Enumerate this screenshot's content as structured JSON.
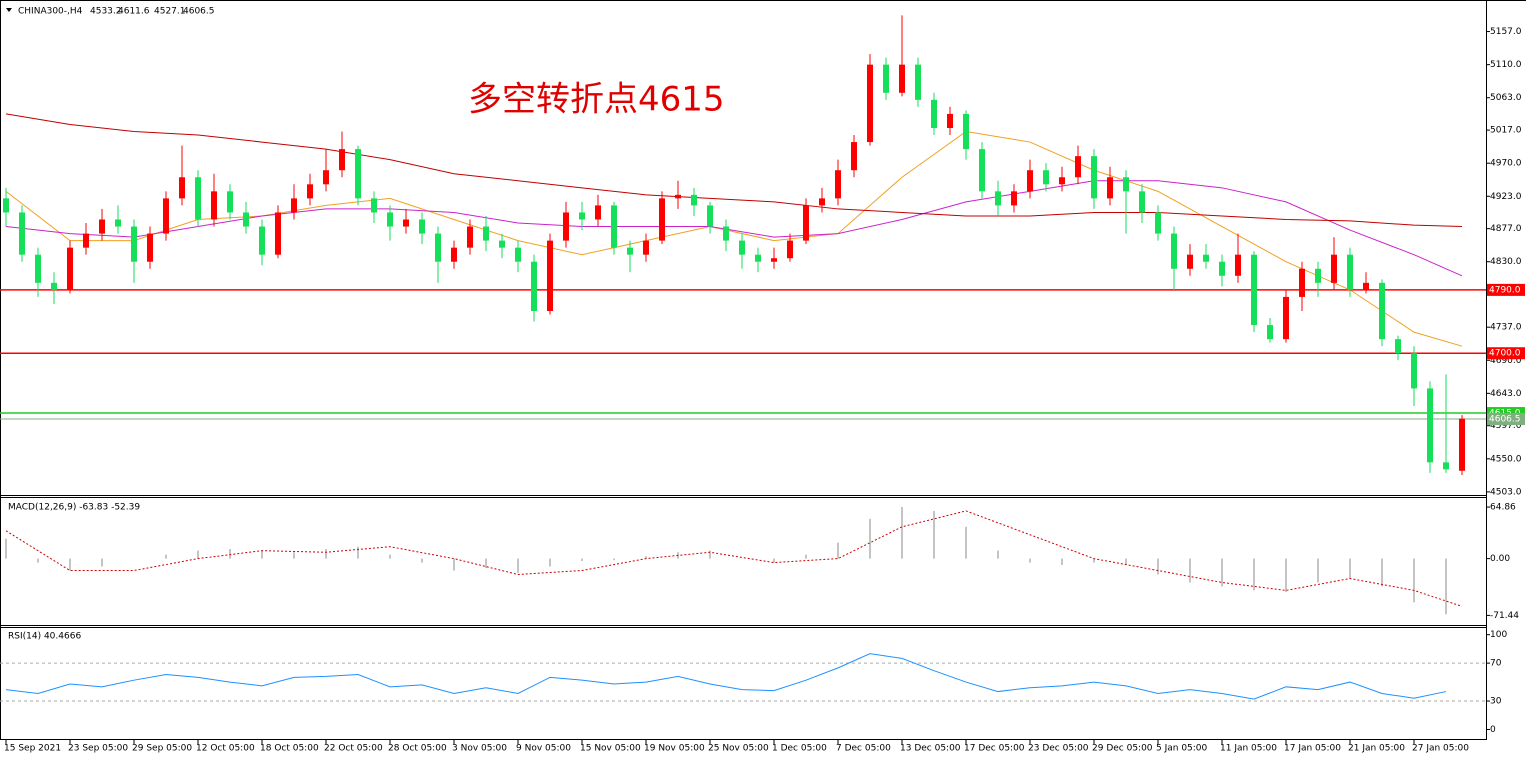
{
  "chart_data": {
    "type": "candlestick",
    "symbol": "CHINA300-,H4",
    "ohlc": [
      4533.2,
      4611.6,
      4527.1,
      4606.5
    ],
    "annotation": "多空转折点4615",
    "up_color": "#ff0000",
    "down_color": "#16df5a",
    "candles": [
      [
        4920,
        4935,
        4880,
        4900
      ],
      [
        4900,
        4910,
        4830,
        4840
      ],
      [
        4840,
        4850,
        4780,
        4800
      ],
      [
        4800,
        4815,
        4770,
        4790
      ],
      [
        4790,
        4860,
        4785,
        4850
      ],
      [
        4850,
        4885,
        4840,
        4870
      ],
      [
        4870,
        4905,
        4860,
        4890
      ],
      [
        4890,
        4910,
        4870,
        4880
      ],
      [
        4880,
        4890,
        4800,
        4830
      ],
      [
        4830,
        4880,
        4820,
        4870
      ],
      [
        4870,
        4930,
        4860,
        4920
      ],
      [
        4920,
        4995,
        4910,
        4950
      ],
      [
        4950,
        4960,
        4880,
        4890
      ],
      [
        4890,
        4955,
        4880,
        4930
      ],
      [
        4930,
        4940,
        4890,
        4900
      ],
      [
        4900,
        4915,
        4870,
        4880
      ],
      [
        4880,
        4890,
        4825,
        4840
      ],
      [
        4840,
        4910,
        4835,
        4900
      ],
      [
        4900,
        4940,
        4890,
        4920
      ],
      [
        4920,
        4955,
        4910,
        4940
      ],
      [
        4940,
        4990,
        4930,
        4960
      ],
      [
        4960,
        5015,
        4950,
        4990
      ],
      [
        4990,
        4995,
        4910,
        4920
      ],
      [
        4920,
        4930,
        4885,
        4900
      ],
      [
        4900,
        4910,
        4860,
        4880
      ],
      [
        4880,
        4905,
        4870,
        4890
      ],
      [
        4890,
        4900,
        4855,
        4870
      ],
      [
        4870,
        4880,
        4800,
        4830
      ],
      [
        4830,
        4860,
        4820,
        4850
      ],
      [
        4850,
        4890,
        4840,
        4880
      ],
      [
        4880,
        4895,
        4845,
        4860
      ],
      [
        4860,
        4870,
        4835,
        4850
      ],
      [
        4850,
        4860,
        4815,
        4830
      ],
      [
        4830,
        4840,
        4745,
        4760
      ],
      [
        4760,
        4870,
        4755,
        4860
      ],
      [
        4860,
        4915,
        4850,
        4900
      ],
      [
        4900,
        4915,
        4875,
        4890
      ],
      [
        4890,
        4925,
        4880,
        4910
      ],
      [
        4910,
        4915,
        4840,
        4850
      ],
      [
        4850,
        4860,
        4815,
        4840
      ],
      [
        4840,
        4870,
        4830,
        4860
      ],
      [
        4860,
        4930,
        4855,
        4920
      ],
      [
        4920,
        4945,
        4905,
        4925
      ],
      [
        4925,
        4935,
        4895,
        4910
      ],
      [
        4910,
        4915,
        4870,
        4880
      ],
      [
        4880,
        4890,
        4845,
        4860
      ],
      [
        4860,
        4870,
        4820,
        4840
      ],
      [
        4840,
        4850,
        4815,
        4830
      ],
      [
        4830,
        4850,
        4820,
        4835
      ],
      [
        4835,
        4870,
        4830,
        4860
      ],
      [
        4860,
        4920,
        4855,
        4910
      ],
      [
        4910,
        4935,
        4900,
        4920
      ],
      [
        4920,
        4975,
        4910,
        4960
      ],
      [
        4960,
        5010,
        4950,
        5000
      ],
      [
        5000,
        5125,
        4995,
        5110
      ],
      [
        5110,
        5120,
        5060,
        5070
      ],
      [
        5070,
        5180,
        5065,
        5110
      ],
      [
        5110,
        5120,
        5050,
        5060
      ],
      [
        5060,
        5070,
        5010,
        5020
      ],
      [
        5020,
        5050,
        5010,
        5040
      ],
      [
        5040,
        5045,
        4975,
        4990
      ],
      [
        4990,
        5000,
        4920,
        4930
      ],
      [
        4930,
        4945,
        4895,
        4910
      ],
      [
        4910,
        4940,
        4900,
        4930
      ],
      [
        4930,
        4975,
        4920,
        4960
      ],
      [
        4960,
        4970,
        4930,
        4940
      ],
      [
        4940,
        4965,
        4930,
        4950
      ],
      [
        4950,
        4995,
        4940,
        4980
      ],
      [
        4980,
        4990,
        4905,
        4920
      ],
      [
        4920,
        4965,
        4910,
        4950
      ],
      [
        4950,
        4960,
        4870,
        4930
      ],
      [
        4930,
        4940,
        4885,
        4900
      ],
      [
        4900,
        4910,
        4860,
        4870
      ],
      [
        4870,
        4880,
        4790,
        4820
      ],
      [
        4820,
        4855,
        4810,
        4840
      ],
      [
        4840,
        4855,
        4820,
        4830
      ],
      [
        4830,
        4840,
        4795,
        4810
      ],
      [
        4810,
        4870,
        4800,
        4840
      ],
      [
        4840,
        4845,
        4730,
        4740
      ],
      [
        4740,
        4750,
        4715,
        4720
      ],
      [
        4720,
        4790,
        4715,
        4780
      ],
      [
        4780,
        4830,
        4760,
        4820
      ],
      [
        4820,
        4830,
        4780,
        4800
      ],
      [
        4800,
        4865,
        4790,
        4840
      ],
      [
        4840,
        4850,
        4780,
        4790
      ],
      [
        4790,
        4815,
        4785,
        4800
      ],
      [
        4800,
        4805,
        4710,
        4720
      ],
      [
        4720,
        4725,
        4690,
        4700
      ],
      [
        4700,
        4710,
        4625,
        4650
      ],
      [
        4650,
        4660,
        4530,
        4545
      ],
      [
        4545,
        4670,
        4530,
        4535
      ],
      [
        4533,
        4612,
        4527,
        4607
      ]
    ],
    "ma": [
      {
        "color": "#f0a020",
        "x": [
          0,
          4,
          8,
          12,
          16,
          20,
          24,
          28,
          32,
          36,
          40,
          44,
          48,
          52,
          56,
          60,
          64,
          68,
          72,
          76,
          80,
          84,
          88,
          91
        ],
        "values": [
          4930,
          4860,
          4860,
          4890,
          4895,
          4910,
          4920,
          4890,
          4860,
          4840,
          4860,
          4880,
          4860,
          4870,
          4950,
          5015,
          5000,
          4960,
          4930,
          4880,
          4830,
          4790,
          4730,
          4710
        ]
      },
      {
        "color": "#cc22cc",
        "x": [
          0,
          4,
          8,
          12,
          16,
          20,
          24,
          28,
          32,
          36,
          40,
          44,
          48,
          52,
          56,
          60,
          64,
          68,
          72,
          76,
          80,
          84,
          88,
          91
        ],
        "values": [
          4880,
          4870,
          4865,
          4880,
          4895,
          4905,
          4905,
          4900,
          4885,
          4880,
          4880,
          4880,
          4865,
          4870,
          4890,
          4915,
          4930,
          4945,
          4945,
          4935,
          4915,
          4875,
          4840,
          4810
        ]
      },
      {
        "color": "#c00000",
        "x": [
          0,
          4,
          8,
          12,
          16,
          20,
          24,
          28,
          32,
          36,
          40,
          44,
          48,
          52,
          56,
          60,
          64,
          68,
          72,
          76,
          80,
          84,
          88,
          91
        ],
        "values": [
          5040,
          5025,
          5015,
          5010,
          5000,
          4990,
          4975,
          4955,
          4945,
          4935,
          4925,
          4920,
          4915,
          4905,
          4900,
          4895,
          4895,
          4900,
          4900,
          4895,
          4890,
          4888,
          4882,
          4880
        ]
      }
    ],
    "ylim": [
      4500,
      5199
    ],
    "yticks": [
      {
        "value": 5157,
        "label": "5157.0"
      },
      {
        "value": 5110,
        "label": "5110.0"
      },
      {
        "value": 5063,
        "label": "5063.0"
      },
      {
        "value": 5017,
        "label": "5017.0"
      },
      {
        "value": 4970,
        "label": "4970.0"
      },
      {
        "value": 4923,
        "label": "4923.0"
      },
      {
        "value": 4877,
        "label": "4877.0"
      },
      {
        "value": 4830,
        "label": "4830.0"
      },
      {
        "value": 4737,
        "label": "4737.0"
      },
      {
        "value": 4690,
        "label": "4690.0"
      },
      {
        "value": 4643,
        "label": "4643.0"
      },
      {
        "value": 4597,
        "label": "4597.0"
      },
      {
        "value": 4550,
        "label": "4550.0"
      },
      {
        "value": 4503,
        "label": "4503.0"
      }
    ],
    "levels": [
      {
        "value": 4790,
        "label": "4790.0",
        "color": "#ff0000"
      },
      {
        "value": 4700,
        "label": "4700.0",
        "color": "#ff0000"
      },
      {
        "value": 4615,
        "label": "4615.0",
        "color": "#22cc22"
      },
      {
        "value": 4606.5,
        "label": "4606.5",
        "color": "#7fae7f"
      }
    ],
    "xticks": [
      {
        "value": 0,
        "label": "15 Sep 2021"
      },
      {
        "value": 4,
        "label": "23 Sep 05:00"
      },
      {
        "value": 8,
        "label": "29 Sep 05:00"
      },
      {
        "value": 12,
        "label": "12 Oct 05:00"
      },
      {
        "value": 16,
        "label": "18 Oct 05:00"
      },
      {
        "value": 20,
        "label": "22 Oct 05:00"
      },
      {
        "value": 24,
        "label": "28 Oct 05:00"
      },
      {
        "value": 28,
        "label": "3 Nov 05:00"
      },
      {
        "value": 32,
        "label": "9 Nov 05:00"
      },
      {
        "value": 36,
        "label": "15 Nov 05:00"
      },
      {
        "value": 40,
        "label": "19 Nov 05:00"
      },
      {
        "value": 44,
        "label": "25 Nov 05:00"
      },
      {
        "value": 48,
        "label": "1 Dec 05:00"
      },
      {
        "value": 52,
        "label": "7 Dec 05:00"
      },
      {
        "value": 56,
        "label": "13 Dec 05:00"
      },
      {
        "value": 60,
        "label": "17 Dec 05:00"
      },
      {
        "value": 64,
        "label": "23 Dec 05:00"
      },
      {
        "value": 68,
        "label": "29 Dec 05:00"
      },
      {
        "value": 72,
        "label": "5 Jan 05:00"
      },
      {
        "value": 76,
        "label": "11 Jan 05:00"
      },
      {
        "value": 80,
        "label": "17 Jan 05:00"
      },
      {
        "value": 84,
        "label": "21 Jan 05:00"
      },
      {
        "value": 88,
        "label": "27 Jan 05:00"
      }
    ],
    "macd": {
      "label": "MACD(12,26,9) -63.83 -52.39",
      "ylim": [
        -81,
        75
      ],
      "yticks": [
        64.86,
        {
          "value": 0,
          "label": "0.00"
        },
        -71.44
      ],
      "histogram": {
        "color": "#b0b0b0",
        "x": [
          0,
          2,
          4,
          6,
          8,
          10,
          12,
          14,
          16,
          18,
          20,
          22,
          24,
          26,
          28,
          30,
          32,
          34,
          36,
          38,
          40,
          42,
          44,
          46,
          48,
          50,
          52,
          54,
          56,
          58,
          60,
          62,
          64,
          66,
          68,
          70,
          72,
          74,
          76,
          78,
          80,
          82,
          84,
          86,
          88,
          90
        ],
        "values": [
          25,
          -5,
          -15,
          -10,
          0,
          5,
          10,
          12,
          10,
          8,
          12,
          15,
          5,
          -5,
          -15,
          -12,
          -18,
          -10,
          -3,
          -2,
          3,
          8,
          10,
          0,
          -5,
          5,
          20,
          50,
          65,
          60,
          40,
          10,
          -5,
          -8,
          -5,
          -8,
          -20,
          -30,
          -35,
          -40,
          -42,
          -30,
          -25,
          -35,
          -55,
          -70
        ]
      },
      "signal": {
        "color": "#cc0000",
        "x": [
          0,
          4,
          8,
          12,
          16,
          20,
          24,
          28,
          32,
          36,
          40,
          44,
          48,
          52,
          56,
          60,
          64,
          68,
          72,
          76,
          80,
          84,
          88,
          91
        ],
        "values": [
          35,
          -15,
          -15,
          0,
          10,
          8,
          15,
          0,
          -20,
          -15,
          0,
          8,
          -5,
          0,
          40,
          60,
          30,
          0,
          -15,
          -30,
          -40,
          -25,
          -40,
          -60
        ]
      }
    },
    "rsi": {
      "label": "RSI(14) 40.4666",
      "ylim": [
        -9,
        106
      ],
      "yticks": [
        100,
        70,
        30,
        0
      ],
      "levels": [
        70,
        30
      ],
      "color": "#1e90ff",
      "x": [
        0,
        2,
        4,
        6,
        8,
        10,
        12,
        14,
        16,
        18,
        20,
        22,
        24,
        26,
        28,
        30,
        32,
        34,
        36,
        38,
        40,
        42,
        44,
        46,
        48,
        50,
        52,
        54,
        56,
        58,
        60,
        62,
        64,
        66,
        68,
        70,
        72,
        74,
        76,
        78,
        80,
        82,
        84,
        86,
        88,
        90
      ],
      "values": [
        42,
        38,
        48,
        45,
        52,
        58,
        55,
        50,
        46,
        55,
        56,
        58,
        45,
        47,
        38,
        44,
        38,
        55,
        52,
        48,
        50,
        56,
        48,
        42,
        41,
        52,
        65,
        80,
        75,
        62,
        50,
        40,
        44,
        46,
        50,
        46,
        38,
        42,
        38,
        32,
        45,
        42,
        50,
        38,
        33,
        40
      ]
    }
  }
}
